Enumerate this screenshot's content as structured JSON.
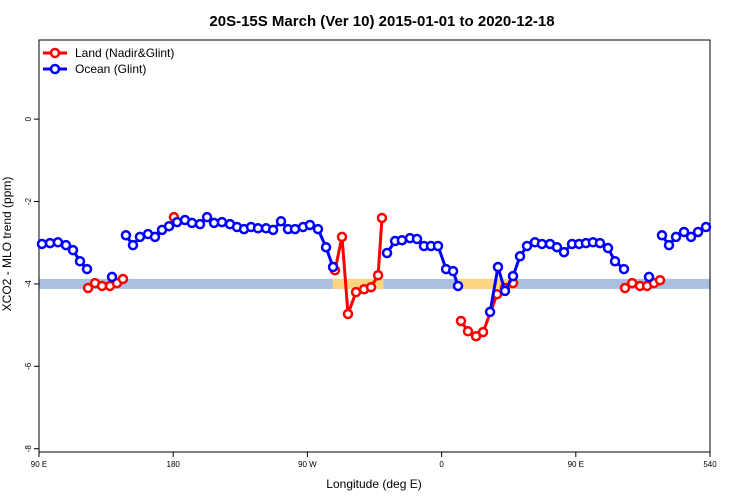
{
  "chart_data": {
    "type": "line",
    "title": "20S-15S March (Ver 10)   2015-01-01 to 2020-12-18",
    "x_label": "Longitude (deg E)",
    "y_label": "XCO2 - MLO trend (ppm)",
    "xlim": [
      90,
      540
    ],
    "ylim": [
      -8.08,
      1.92
    ],
    "xticks": [
      {
        "value": 90,
        "label": "90 E"
      },
      180,
      {
        "value": 270,
        "label": "90 W"
      },
      {
        "value": 360,
        "label": "0"
      },
      {
        "value": 450,
        "label": "90 E"
      },
      540
    ],
    "yticks": [
      0,
      -2,
      -4,
      -6,
      -8
    ],
    "legend": "top-left",
    "band": {
      "value": -4,
      "color": "#a9c0e2",
      "highlight_color": "#fdd57e",
      "highlights": [
        [
          287,
          321
        ],
        [
          369,
          410
        ]
      ]
    },
    "series": [
      {
        "name": "Land (Nadir&Glint)",
        "color": "#ff0000",
        "x": [
          122.9,
          127.6,
          132.3,
          137.6,
          142.3,
          146.3,
          null,
          180.5,
          null,
          288.5,
          293.2,
          297.2,
          302.6,
          308.0,
          312.7,
          317.4,
          320.0,
          null,
          373.0,
          377.7,
          383.1,
          387.8,
          397.2,
          402.5,
          407.9,
          null,
          483.0,
          487.8,
          493.1,
          497.8,
          502.5,
          506.5
        ],
        "values": [
          -4.1,
          -3.98,
          -4.05,
          -4.05,
          -3.98,
          -3.88,
          null,
          -2.38,
          null,
          -3.67,
          -2.86,
          -4.73,
          -4.2,
          -4.13,
          -4.08,
          -3.79,
          -2.4,
          null,
          -4.9,
          -5.15,
          -5.27,
          -5.17,
          -4.25,
          -4.1,
          -3.98,
          null,
          -4.1,
          -3.98,
          -4.05,
          -4.05,
          -3.98,
          -3.91
        ]
      },
      {
        "name": "Ocean (Glint)",
        "color": "#0000ff",
        "x": [
          92.0,
          97.4,
          102.7,
          108.1,
          112.8,
          117.5,
          122.2,
          null,
          139.0,
          null,
          148.3,
          153.0,
          157.7,
          163.1,
          167.8,
          172.5,
          177.2,
          182.6,
          187.9,
          192.6,
          198.0,
          202.7,
          207.4,
          212.7,
          218.1,
          222.8,
          227.5,
          232.2,
          236.9,
          242.3,
          247.0,
          252.3,
          257.0,
          261.7,
          267.1,
          271.7,
          277.1,
          282.5,
          287.2,
          null,
          323.4,
          328.8,
          333.4,
          338.8,
          343.5,
          348.2,
          352.9,
          357.6,
          363.0,
          367.7,
          371.0,
          null,
          392.5,
          397.8,
          402.5,
          407.9,
          412.6,
          417.3,
          422.6,
          427.3,
          432.7,
          437.4,
          442.1,
          447.5,
          452.2,
          456.8,
          461.5,
          466.2,
          471.6,
          476.3,
          482.3,
          null,
          499.1,
          null,
          507.8,
          512.5,
          517.2,
          522.6,
          527.3,
          532.0,
          537.3
        ],
        "values": [
          -3.03,
          -3.01,
          -2.99,
          -3.06,
          -3.18,
          -3.45,
          -3.64,
          null,
          -3.83,
          null,
          -2.82,
          -3.06,
          -2.86,
          -2.79,
          -2.86,
          -2.69,
          -2.6,
          -2.5,
          -2.45,
          -2.52,
          -2.55,
          -2.38,
          -2.52,
          -2.5,
          -2.55,
          -2.62,
          -2.67,
          -2.62,
          -2.65,
          -2.65,
          -2.69,
          -2.48,
          -2.67,
          -2.67,
          -2.62,
          -2.57,
          -2.67,
          -3.11,
          -3.59,
          null,
          -3.25,
          -2.96,
          -2.94,
          -2.89,
          -2.91,
          -3.08,
          -3.08,
          -3.08,
          -3.64,
          -3.69,
          -4.05,
          null,
          -4.68,
          -3.59,
          -4.17,
          -3.81,
          -3.33,
          -3.08,
          -2.99,
          -3.03,
          -3.03,
          -3.11,
          -3.23,
          -3.03,
          -3.03,
          -3.01,
          -2.99,
          -3.01,
          -3.13,
          -3.45,
          -3.64,
          null,
          -3.83,
          null,
          -2.82,
          -3.06,
          -2.86,
          -2.74,
          -2.86,
          -2.74,
          -2.62
        ]
      }
    ]
  }
}
